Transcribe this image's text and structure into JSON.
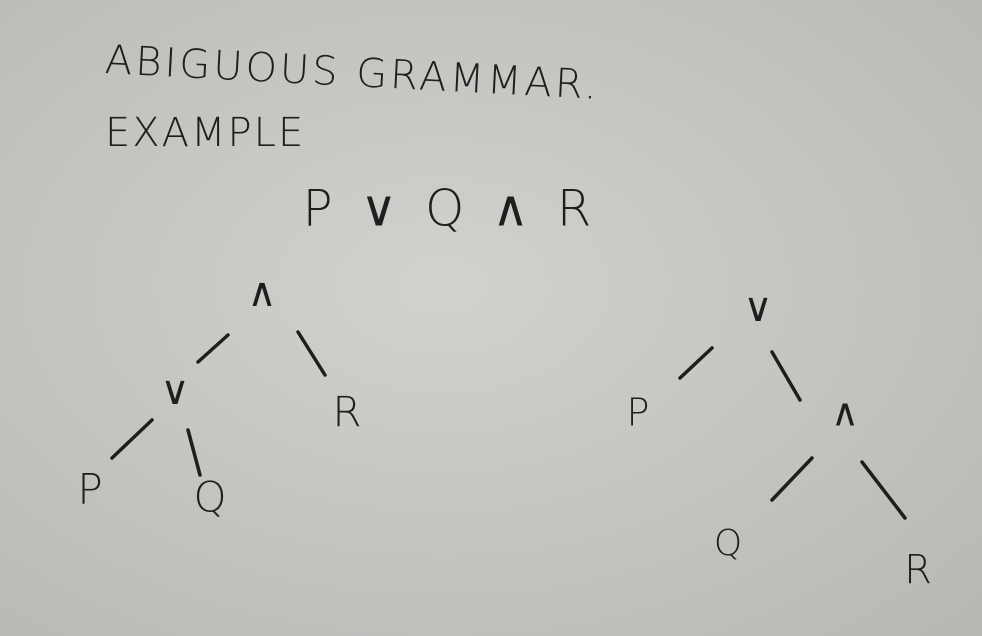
{
  "header": {
    "title": "ABIGUOUS GRAMMAR.",
    "subtitle": "EXAMPLE"
  },
  "expression": "P ∨ Q ∧ R",
  "trees": [
    {
      "nodes": [
        {
          "label": "∧"
        },
        {
          "label": "∨"
        },
        {
          "label": "R"
        },
        {
          "label": "P"
        },
        {
          "label": "Q"
        }
      ]
    },
    {
      "nodes": [
        {
          "label": "∨"
        },
        {
          "label": "P"
        },
        {
          "label": "∧"
        },
        {
          "label": "Q"
        },
        {
          "label": "R"
        }
      ]
    }
  ]
}
